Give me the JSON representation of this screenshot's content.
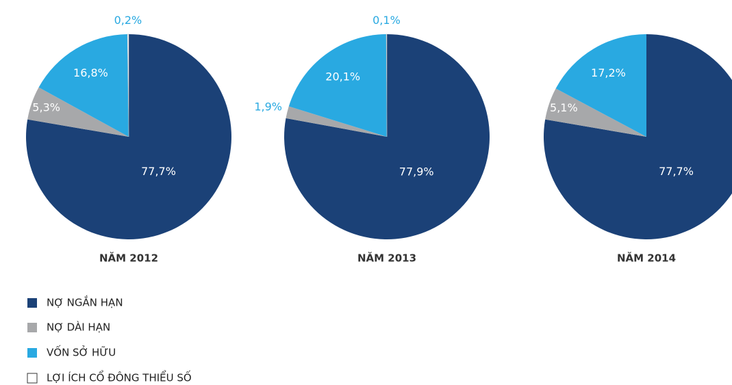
{
  "chart_data": {
    "type": "pie",
    "categories": [
      "NỢ NGẮN HẠN",
      "NỢ DÀI HẠN",
      "VỐN SỞ HỮU",
      "LỢI ÍCH CỔ ĐÔNG THIỂU SỐ"
    ],
    "colors": [
      "#1b4177",
      "#a7a8aa",
      "#29a9e1",
      "#ffffff"
    ],
    "series": [
      {
        "name": "NĂM 2012",
        "values": [
          77.7,
          5.3,
          16.8,
          0.2
        ],
        "value_labels": [
          "77,7%",
          "5,3%",
          "16,8%",
          "0,2%"
        ]
      },
      {
        "name": "NĂM 2013",
        "values": [
          77.9,
          1.9,
          20.1,
          0.1
        ],
        "value_labels": [
          "77,9%",
          "1,9%",
          "20,1%",
          "0,1%"
        ]
      },
      {
        "name": "NĂM 2014",
        "values": [
          77.7,
          5.1,
          17.2,
          null
        ],
        "value_labels": [
          "77,7%",
          "5,1%",
          "17,2%",
          null
        ]
      }
    ]
  }
}
